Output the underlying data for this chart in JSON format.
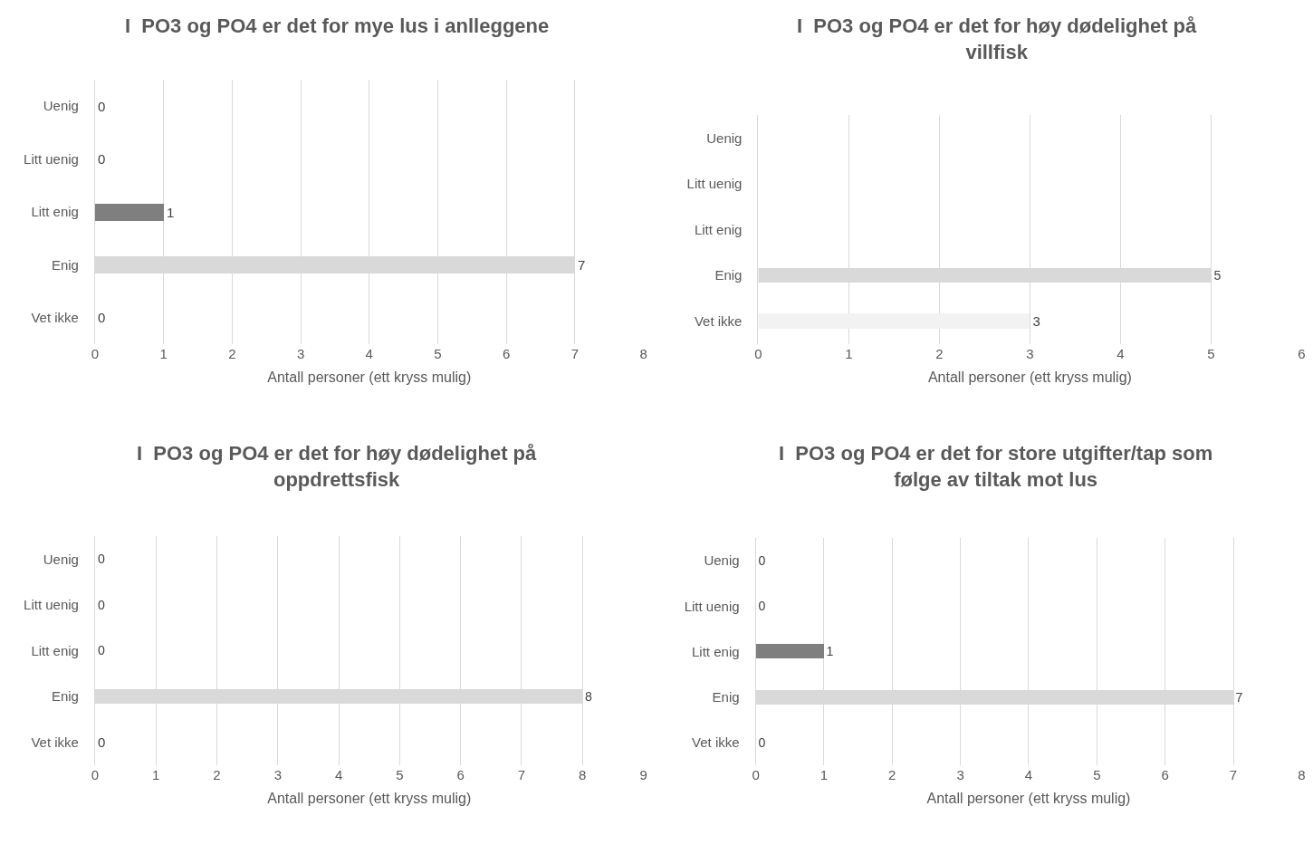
{
  "chart_data": [
    {
      "type": "bar",
      "orientation": "horizontal",
      "title": "I  PO3 og PO4 er det for mye lus i anlleggene",
      "xlabel": "Antall personer (ett kryss mulig)",
      "categories": [
        "Uenig",
        "Litt uenig",
        "Litt enig",
        "Enig",
        "Vet ikke"
      ],
      "values": [
        0,
        0,
        1,
        7,
        0
      ],
      "colors": [
        "#7f7f7f",
        "#bfbfbf",
        "#7f7f7f",
        "#d9d9d9",
        "#f2f2f2"
      ],
      "data_labels": true,
      "xlim": [
        0,
        8
      ],
      "xticks": [
        0,
        1,
        2,
        3,
        4,
        5,
        6,
        7,
        8
      ],
      "grid": "x"
    },
    {
      "type": "bar",
      "orientation": "horizontal",
      "title": "I  PO3 og PO4 er det for høy dødelighet på villfisk",
      "xlabel": "Antall personer (ett kryss mulig)",
      "categories": [
        "Uenig",
        "Litt uenig",
        "Litt enig",
        "Enig",
        "Vet ikke"
      ],
      "values": [
        null,
        null,
        null,
        5,
        3
      ],
      "colors": [
        null,
        null,
        null,
        "#d9d9d9",
        "#f2f2f2"
      ],
      "data_labels": true,
      "xlim": [
        0,
        6
      ],
      "xticks": [
        0,
        1,
        2,
        3,
        4,
        5,
        6
      ],
      "grid": "x"
    },
    {
      "type": "bar",
      "orientation": "horizontal",
      "title": "I  PO3 og PO4 er det for høy dødelighet på oppdrettsfisk",
      "xlabel": "Antall personer (ett kryss mulig)",
      "categories": [
        "Uenig",
        "Litt uenig",
        "Litt enig",
        "Enig",
        "Vet ikke"
      ],
      "values": [
        0,
        0,
        0,
        8,
        0
      ],
      "colors": [
        "#7f7f7f",
        "#bfbfbf",
        "#7f7f7f",
        "#d9d9d9",
        "#f2f2f2"
      ],
      "data_labels": true,
      "xlim": [
        0,
        9
      ],
      "xticks": [
        0,
        1,
        2,
        3,
        4,
        5,
        6,
        7,
        8,
        9
      ],
      "grid": "x"
    },
    {
      "type": "bar",
      "orientation": "horizontal",
      "title": "I  PO3 og PO4 er det for store utgifter/tap som følge av tiltak mot lus",
      "xlabel": "Antall personer (ett kryss mulig)",
      "categories": [
        "Uenig",
        "Litt uenig",
        "Litt enig",
        "Enig",
        "Vet ikke"
      ],
      "values": [
        0,
        0,
        1,
        7,
        0
      ],
      "colors": [
        "#7f7f7f",
        "#bfbfbf",
        "#7f7f7f",
        "#d9d9d9",
        "#f2f2f2"
      ],
      "data_labels": true,
      "xlim": [
        0,
        8
      ],
      "xticks": [
        0,
        1,
        2,
        3,
        4,
        5,
        6,
        7,
        8
      ],
      "grid": "x"
    }
  ]
}
